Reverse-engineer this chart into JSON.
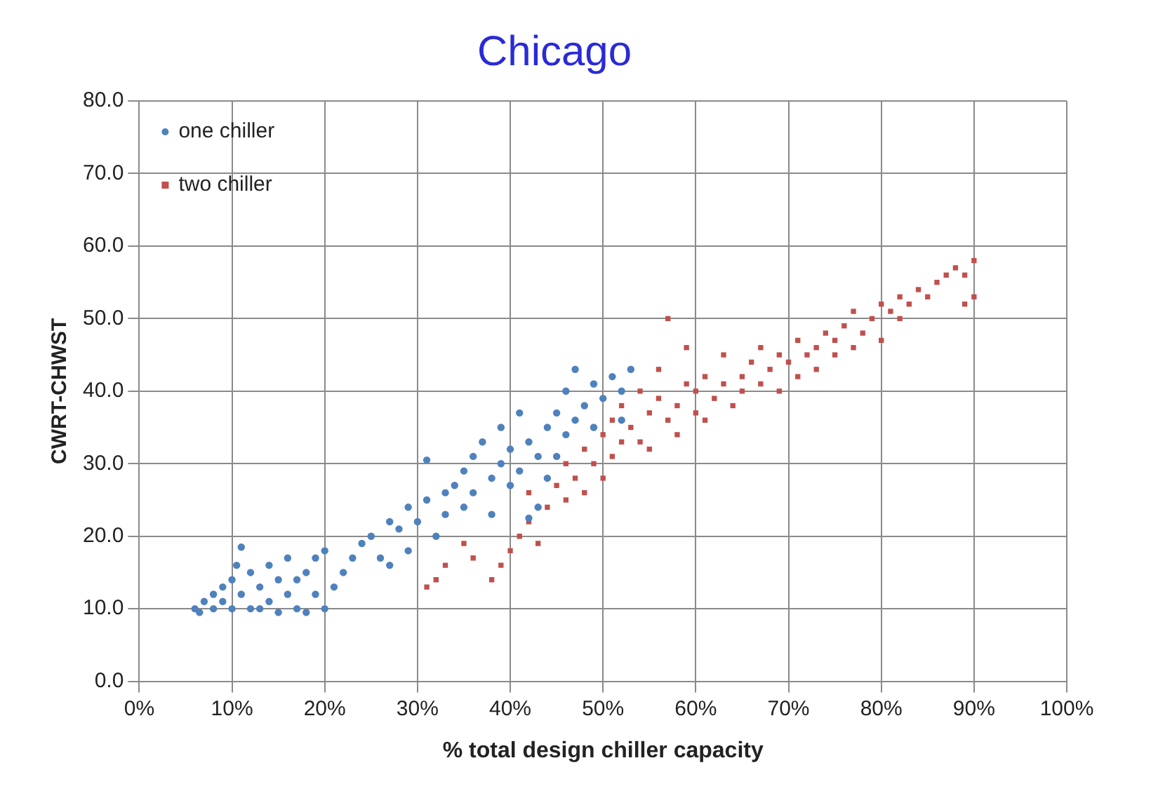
{
  "chart_data": {
    "type": "scatter",
    "title": "Chicago",
    "xlabel": "% total design chiller capacity",
    "ylabel": "CWRT-CHWST",
    "xlim": [
      0,
      100
    ],
    "xticks": [
      {
        "value": 0,
        "label": "0%"
      },
      {
        "value": 10,
        "label": "10%"
      },
      {
        "value": 20,
        "label": "20%"
      },
      {
        "value": 30,
        "label": "30%"
      },
      {
        "value": 40,
        "label": "40%"
      },
      {
        "value": 50,
        "label": "50%"
      },
      {
        "value": 60,
        "label": "60%"
      },
      {
        "value": 70,
        "label": "70%"
      },
      {
        "value": 80,
        "label": "80%"
      },
      {
        "value": 90,
        "label": "90%"
      },
      {
        "value": 100,
        "label": "100%"
      }
    ],
    "ylim": [
      0,
      80
    ],
    "yticks": [
      {
        "value": 0,
        "label": "0.0"
      },
      {
        "value": 10,
        "label": "10.0"
      },
      {
        "value": 20,
        "label": "20.0"
      },
      {
        "value": 30,
        "label": "30.0"
      },
      {
        "value": 40,
        "label": "40.0"
      },
      {
        "value": 50,
        "label": "50.0"
      },
      {
        "value": 60,
        "label": "60.0"
      },
      {
        "value": 70,
        "label": "70.0"
      },
      {
        "value": 80,
        "label": "80.0"
      }
    ],
    "grid": true,
    "legend": "top left",
    "marker": "circle",
    "series": [
      {
        "name": "one chiller",
        "color": "#4f81bd",
        "x": [
          6,
          6.5,
          7,
          8,
          8,
          9,
          9,
          10,
          10,
          10.5,
          11,
          11,
          12,
          12,
          13,
          13,
          14,
          14,
          15,
          15,
          16,
          16,
          17,
          17,
          18,
          18,
          19,
          19,
          20,
          20,
          21,
          22,
          23,
          24,
          25,
          26,
          27,
          27,
          28,
          29,
          29,
          30,
          31,
          31,
          32,
          33,
          33,
          34,
          35,
          35,
          36,
          36,
          37,
          38,
          38,
          39,
          39,
          40,
          40,
          41,
          41,
          42,
          43,
          43,
          44,
          45,
          45,
          46,
          46,
          47,
          47,
          48,
          49,
          49,
          50,
          51,
          52,
          53,
          52,
          44,
          42
        ],
        "values": [
          10,
          9.5,
          11,
          10,
          12,
          11,
          13,
          10,
          14,
          16,
          18.5,
          12,
          10,
          15,
          13,
          10,
          11,
          16,
          14,
          9.5,
          12,
          17,
          10,
          14,
          15,
          9.5,
          17,
          12,
          18,
          10,
          13,
          15,
          17,
          19,
          20,
          17,
          22,
          16,
          21,
          24,
          18,
          22,
          25,
          30.5,
          20,
          26,
          23,
          27,
          24,
          29,
          31,
          26,
          33,
          28,
          23,
          30,
          35,
          27,
          32,
          29,
          37,
          33,
          31,
          24,
          35,
          37,
          31,
          40,
          34,
          36,
          43,
          38,
          41,
          35,
          39,
          42,
          40,
          43,
          36,
          28,
          22.5
        ]
      },
      {
        "name": "two chiller",
        "color": "#c0504d",
        "marker": "square",
        "x": [
          31,
          32,
          33,
          35,
          36,
          38,
          39,
          40,
          41,
          42,
          42,
          43,
          44,
          45,
          46,
          46,
          47,
          48,
          48,
          49,
          50,
          50,
          51,
          51,
          52,
          52,
          53,
          54,
          54,
          55,
          55,
          56,
          56,
          57,
          57,
          58,
          58,
          59,
          59,
          60,
          60,
          61,
          61,
          62,
          63,
          63,
          64,
          65,
          65,
          66,
          67,
          67,
          68,
          69,
          69,
          70,
          71,
          71,
          72,
          73,
          73,
          74,
          75,
          75,
          76,
          77,
          77,
          78,
          79,
          80,
          80,
          81,
          82,
          82,
          83,
          84,
          85,
          86,
          87,
          88,
          89,
          90,
          90,
          89
        ],
        "values": [
          13,
          14,
          16,
          19,
          17,
          14,
          16,
          18,
          20,
          22,
          26,
          19,
          24,
          27,
          25,
          30,
          28,
          26,
          32,
          30,
          34,
          28,
          36,
          31,
          33,
          38,
          35,
          40,
          33,
          37,
          32,
          39,
          43,
          36,
          50,
          38,
          34,
          41,
          46,
          37,
          40,
          42,
          36,
          39,
          41,
          45,
          38,
          42,
          40,
          44,
          41,
          46,
          43,
          45,
          40,
          44,
          47,
          42,
          45,
          46,
          43,
          48,
          45,
          47,
          49,
          46,
          51,
          48,
          50,
          52,
          47,
          51,
          50,
          53,
          52,
          54,
          53,
          55,
          56,
          57,
          56,
          58,
          53,
          52
        ]
      }
    ]
  }
}
